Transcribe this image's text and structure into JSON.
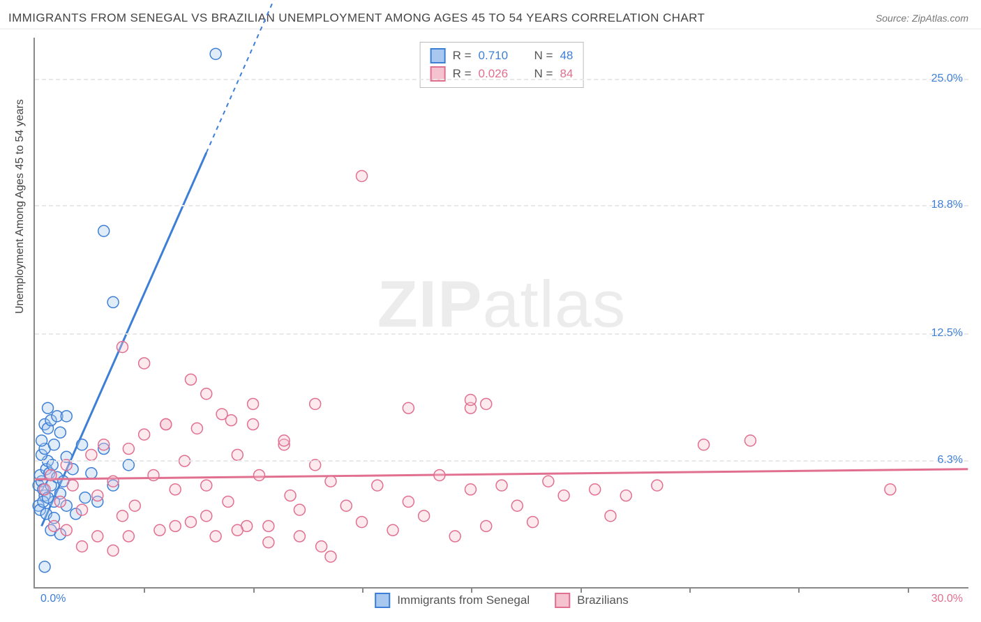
{
  "title": "IMMIGRANTS FROM SENEGAL VS BRAZILIAN UNEMPLOYMENT AMONG AGES 45 TO 54 YEARS CORRELATION CHART",
  "source": "Source: ZipAtlas.com",
  "y_axis_title": "Unemployment Among Ages 45 to 54 years",
  "watermark_bold": "ZIP",
  "watermark_light": "atlas",
  "chart": {
    "type": "scatter",
    "xlim": [
      0,
      30
    ],
    "ylim": [
      0,
      27
    ],
    "x_min_label": "0.0%",
    "x_max_label": "30.0%",
    "x_ticks": [
      3.5,
      7,
      10.5,
      14,
      17.5,
      21,
      24.5,
      28
    ],
    "y_ticks": [
      {
        "value": 6.3,
        "label": "6.3%"
      },
      {
        "value": 12.5,
        "label": "12.5%"
      },
      {
        "value": 18.8,
        "label": "18.8%"
      },
      {
        "value": 25.0,
        "label": "25.0%"
      }
    ],
    "background_color": "#ffffff",
    "grid_color": "#e8e8e8",
    "marker_radius": 8,
    "marker_stroke_width": 1.5,
    "marker_fill_opacity": 0.35,
    "series": [
      {
        "id": "senegal",
        "label": "Immigrants from Senegal",
        "color_stroke": "#3d7fd6",
        "color_fill": "#a9c8ef",
        "R": "0.710",
        "N": "48",
        "trend": {
          "x1": 0.2,
          "y1": 3.0,
          "x2": 8.0,
          "y2": 30.0,
          "solid_until_x": 5.5
        },
        "points": [
          [
            0.1,
            5.0
          ],
          [
            0.2,
            5.2
          ],
          [
            0.3,
            4.5
          ],
          [
            0.15,
            5.5
          ],
          [
            0.25,
            4.8
          ],
          [
            0.35,
            5.8
          ],
          [
            0.4,
            6.2
          ],
          [
            0.2,
            6.5
          ],
          [
            0.5,
            5.0
          ],
          [
            0.3,
            6.8
          ],
          [
            0.6,
            4.2
          ],
          [
            0.1,
            4.0
          ],
          [
            0.45,
            5.6
          ],
          [
            0.55,
            6.0
          ],
          [
            0.2,
            7.2
          ],
          [
            0.7,
            5.4
          ],
          [
            0.3,
            8.0
          ],
          [
            0.4,
            7.8
          ],
          [
            0.8,
            4.6
          ],
          [
            0.6,
            7.0
          ],
          [
            0.15,
            3.8
          ],
          [
            0.9,
            5.2
          ],
          [
            0.5,
            8.2
          ],
          [
            0.25,
            4.2
          ],
          [
            1.0,
            6.4
          ],
          [
            0.35,
            3.6
          ],
          [
            1.2,
            5.8
          ],
          [
            0.7,
            8.4
          ],
          [
            1.5,
            7.0
          ],
          [
            0.4,
            4.4
          ],
          [
            1.8,
            5.6
          ],
          [
            2.2,
            6.8
          ],
          [
            0.6,
            3.4
          ],
          [
            2.5,
            5.0
          ],
          [
            0.5,
            2.8
          ],
          [
            1.0,
            4.0
          ],
          [
            1.3,
            3.6
          ],
          [
            0.8,
            2.6
          ],
          [
            1.6,
            4.4
          ],
          [
            0.3,
            1.0
          ],
          [
            2.0,
            4.2
          ],
          [
            3.0,
            6.0
          ],
          [
            2.2,
            17.5
          ],
          [
            2.5,
            14.0
          ],
          [
            5.8,
            26.2
          ],
          [
            1.0,
            8.4
          ],
          [
            0.4,
            8.8
          ],
          [
            0.8,
            7.6
          ]
        ]
      },
      {
        "id": "brazilians",
        "label": "Brazilians",
        "color_stroke": "#e16f8f",
        "color_fill": "#f5c2d0",
        "R": "0.026",
        "N": "84",
        "trend": {
          "x1": 0,
          "y1": 5.3,
          "x2": 30,
          "y2": 5.8
        },
        "points": [
          [
            0.3,
            4.8
          ],
          [
            0.5,
            5.5
          ],
          [
            0.8,
            4.2
          ],
          [
            1.0,
            6.0
          ],
          [
            1.2,
            5.0
          ],
          [
            1.5,
            3.8
          ],
          [
            1.8,
            6.5
          ],
          [
            2.0,
            4.5
          ],
          [
            2.2,
            7.0
          ],
          [
            2.5,
            5.2
          ],
          [
            2.8,
            3.5
          ],
          [
            3.0,
            6.8
          ],
          [
            3.2,
            4.0
          ],
          [
            3.5,
            7.5
          ],
          [
            3.8,
            5.5
          ],
          [
            4.0,
            2.8
          ],
          [
            4.2,
            8.0
          ],
          [
            4.5,
            4.8
          ],
          [
            4.8,
            6.2
          ],
          [
            5.0,
            3.2
          ],
          [
            5.2,
            7.8
          ],
          [
            5.5,
            5.0
          ],
          [
            5.8,
            2.5
          ],
          [
            6.0,
            8.5
          ],
          [
            6.2,
            4.2
          ],
          [
            6.5,
            6.5
          ],
          [
            6.8,
            3.0
          ],
          [
            7.0,
            9.0
          ],
          [
            7.2,
            5.5
          ],
          [
            7.5,
            2.2
          ],
          [
            8.0,
            7.0
          ],
          [
            8.2,
            4.5
          ],
          [
            8.5,
            3.8
          ],
          [
            9.0,
            6.0
          ],
          [
            9.2,
            2.0
          ],
          [
            9.5,
            5.2
          ],
          [
            10.0,
            4.0
          ],
          [
            10.5,
            3.2
          ],
          [
            10.5,
            20.2
          ],
          [
            11.0,
            5.0
          ],
          [
            11.5,
            2.8
          ],
          [
            12.0,
            8.8
          ],
          [
            12.0,
            4.2
          ],
          [
            12.5,
            3.5
          ],
          [
            13.0,
            5.5
          ],
          [
            13.5,
            2.5
          ],
          [
            14.0,
            4.8
          ],
          [
            14.0,
            8.8
          ],
          [
            14.5,
            3.0
          ],
          [
            15.0,
            5.0
          ],
          [
            15.5,
            4.0
          ],
          [
            16.0,
            3.2
          ],
          [
            16.5,
            5.2
          ],
          [
            17.0,
            4.5
          ],
          [
            2.8,
            11.8
          ],
          [
            3.5,
            11.0
          ],
          [
            4.2,
            8.0
          ],
          [
            5.0,
            10.2
          ],
          [
            5.5,
            9.5
          ],
          [
            6.3,
            8.2
          ],
          [
            7.0,
            8.0
          ],
          [
            8.0,
            7.2
          ],
          [
            14.0,
            9.2
          ],
          [
            14.5,
            9.0
          ],
          [
            1.5,
            2.0
          ],
          [
            2.0,
            2.5
          ],
          [
            0.6,
            3.0
          ],
          [
            1.0,
            2.8
          ],
          [
            18.0,
            4.8
          ],
          [
            18.5,
            3.5
          ],
          [
            20.0,
            5.0
          ],
          [
            21.5,
            7.0
          ],
          [
            19.0,
            4.5
          ],
          [
            4.5,
            3.0
          ],
          [
            6.5,
            2.8
          ],
          [
            8.5,
            2.5
          ],
          [
            9.5,
            1.5
          ],
          [
            3.0,
            2.5
          ],
          [
            27.5,
            4.8
          ],
          [
            23.0,
            7.2
          ],
          [
            5.5,
            3.5
          ],
          [
            7.5,
            3.0
          ],
          [
            2.5,
            1.8
          ],
          [
            9.0,
            9.0
          ]
        ]
      }
    ]
  },
  "legend_top": {
    "r_prefix": "R  =  ",
    "n_prefix": "N  =  "
  }
}
